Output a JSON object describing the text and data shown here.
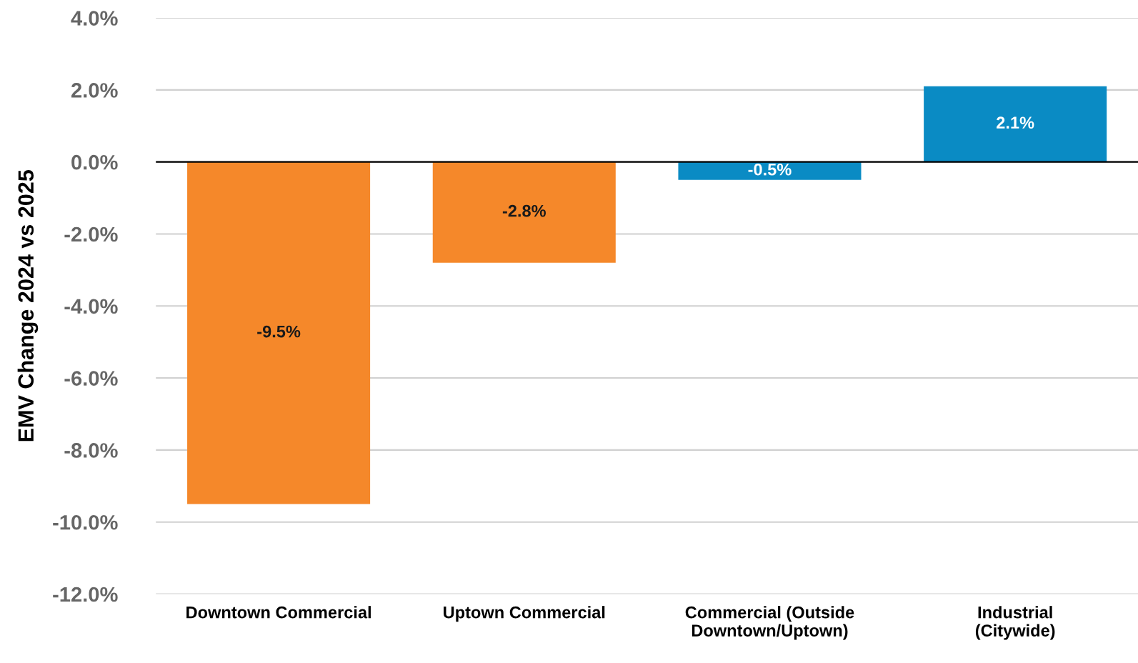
{
  "chart_data": {
    "type": "bar",
    "ylabel": "EMV Change 2024 vs 2025",
    "categories": [
      "Downtown Commercial",
      "Uptown Commercial",
      "Commercial (Outside\nDowntown/Uptown)",
      "Industrial\n(Citywide)"
    ],
    "values": [
      -9.5,
      -2.8,
      -0.5,
      2.1
    ],
    "colors": [
      "#f5882a",
      "#f5882a",
      "#0a8bc4",
      "#0a8bc4"
    ],
    "value_labels": [
      "-9.5%",
      "-2.8%",
      "-0.5%",
      "2.1%"
    ],
    "ylim": [
      -12,
      4
    ],
    "yticks": [
      {
        "value": -12,
        "label": "-12.0%"
      },
      {
        "value": -10,
        "label": "-10.0%"
      },
      {
        "value": -8,
        "label": "-8.0%"
      },
      {
        "value": -6,
        "label": "-6.0%"
      },
      {
        "value": -4,
        "label": "-4.0%"
      },
      {
        "value": -2,
        "label": "-2.0%"
      },
      {
        "value": 0,
        "label": "0.0%"
      },
      {
        "value": 2,
        "label": "2.0%"
      },
      {
        "value": 4,
        "label": "4.0%"
      }
    ],
    "grid": "y",
    "ref_lines": [
      {
        "axis": "y",
        "value": 0,
        "label": null,
        "color": "#000000"
      }
    ]
  }
}
